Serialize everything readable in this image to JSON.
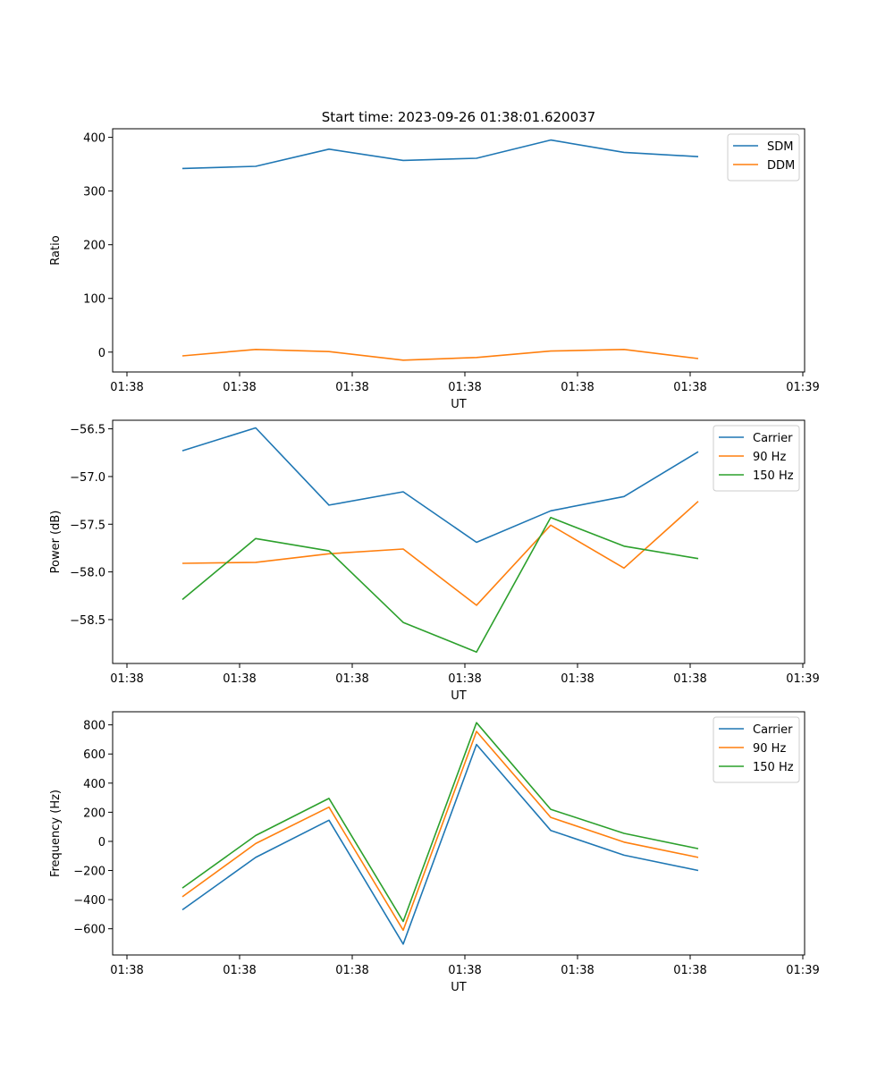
{
  "title": "Start time: 2023-09-26 01:38:01.620037",
  "colors": {
    "series1": "#1f77b4",
    "series2": "#ff7f0e",
    "series3": "#2ca02c",
    "axis": "#000000"
  },
  "chart_data": [
    {
      "type": "line",
      "xlabel": "UT",
      "ylabel": "Ratio",
      "x_ticks": [
        "01:38",
        "01:38",
        "01:38",
        "01:38",
        "01:38",
        "01:38",
        "01:39"
      ],
      "x": [
        1,
        2,
        3,
        4,
        5,
        6,
        7,
        8
      ],
      "xlim": [
        0.5,
        9.5
      ],
      "ylim": [
        -37,
        416
      ],
      "y_ticks": [
        0,
        100,
        200,
        300,
        400
      ],
      "y_tick_labels": [
        "0",
        "100",
        "200",
        "300",
        "400"
      ],
      "legend": "top-right",
      "series": [
        {
          "name": "SDM",
          "values": [
            342,
            346,
            378,
            357,
            361,
            395,
            372,
            364
          ]
        },
        {
          "name": "DDM",
          "values": [
            -7,
            5,
            1,
            -15,
            -10,
            2,
            5,
            -12
          ]
        }
      ]
    },
    {
      "type": "line",
      "xlabel": "UT",
      "ylabel": "Power (dB)",
      "x_ticks": [
        "01:38",
        "01:38",
        "01:38",
        "01:38",
        "01:38",
        "01:38",
        "01:39"
      ],
      "x": [
        1,
        2,
        3,
        4,
        5,
        6,
        7,
        8
      ],
      "xlim": [
        0.5,
        9.5
      ],
      "ylim": [
        -58.96,
        -56.41
      ],
      "y_ticks": [
        -58.5,
        -58.0,
        -57.5,
        -57.0,
        -56.5
      ],
      "y_tick_labels": [
        "−58.5",
        "−58.0",
        "−57.5",
        "−57.0",
        "−56.5"
      ],
      "legend": "top-right",
      "series": [
        {
          "name": "Carrier",
          "values": [
            -56.73,
            -56.49,
            -57.3,
            -57.16,
            -57.69,
            -57.36,
            -57.21,
            -56.74
          ]
        },
        {
          "name": "90 Hz",
          "values": [
            -57.91,
            -57.9,
            -57.81,
            -57.76,
            -58.35,
            -57.51,
            -57.96,
            -57.26
          ]
        },
        {
          "name": "150 Hz",
          "values": [
            -58.29,
            -57.65,
            -57.78,
            -58.53,
            -58.84,
            -57.43,
            -57.73,
            -57.86
          ]
        }
      ]
    },
    {
      "type": "line",
      "xlabel": "UT",
      "ylabel": "Frequency (Hz)",
      "x_ticks": [
        "01:38",
        "01:38",
        "01:38",
        "01:38",
        "01:38",
        "01:38",
        "01:39"
      ],
      "x": [
        1,
        2,
        3,
        4,
        5,
        6,
        7,
        8
      ],
      "xlim": [
        0.5,
        9.5
      ],
      "ylim": [
        -780,
        890
      ],
      "y_ticks": [
        -600,
        -400,
        -200,
        0,
        200,
        400,
        600,
        800
      ],
      "y_tick_labels": [
        "−600",
        "−400",
        "−200",
        "0",
        "200",
        "400",
        "600",
        "800"
      ],
      "legend": "top-right",
      "series": [
        {
          "name": "Carrier",
          "values": [
            -470,
            -110,
            145,
            -705,
            665,
            75,
            -95,
            -200
          ]
        },
        {
          "name": "90 Hz",
          "values": [
            -380,
            -15,
            235,
            -610,
            755,
            165,
            -5,
            -110
          ]
        },
        {
          "name": "150 Hz",
          "values": [
            -320,
            40,
            295,
            -550,
            815,
            220,
            55,
            -50
          ]
        }
      ]
    }
  ]
}
